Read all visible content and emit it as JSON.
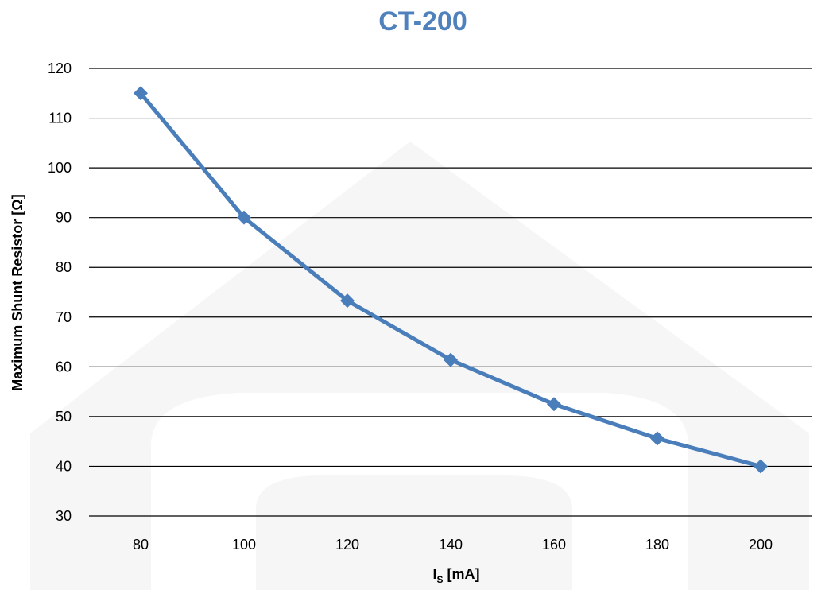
{
  "chart_data": {
    "type": "line",
    "title": "CT-200",
    "xlabel": {
      "main": "I",
      "subscript": "S",
      "unit": " [mA]"
    },
    "ylabel": "Maximum Shunt Resistor [Ω]",
    "x": [
      80,
      100,
      120,
      140,
      160,
      180,
      200
    ],
    "series": [
      {
        "values": [
          115,
          90,
          73.3,
          61.4,
          52.5,
          45.6,
          40
        ]
      }
    ],
    "xlim": [
      70,
      210
    ],
    "ylim": [
      30,
      120
    ],
    "xticks": [
      80,
      100,
      120,
      140,
      160,
      180,
      200
    ],
    "yticks": [
      30,
      40,
      50,
      60,
      70,
      80,
      90,
      100,
      110,
      120
    ],
    "grid": "horizontal",
    "legend": "none",
    "marker": "diamond",
    "colors": {
      "title": "#4f81bd",
      "series": "#4a7ebb",
      "gridline": "#000000",
      "watermark": "#f2f2f2"
    }
  }
}
